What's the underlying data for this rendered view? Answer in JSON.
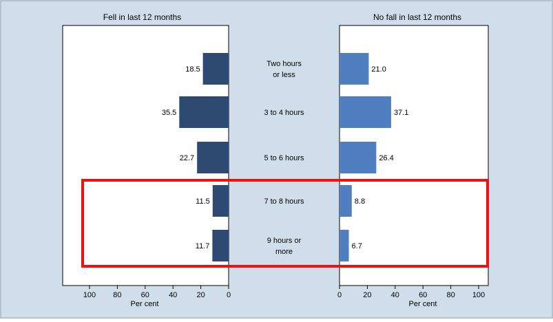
{
  "chart_data": {
    "type": "bar",
    "orientation": "horizontal-butterfly",
    "categories": [
      "Two hours or less",
      "3 to 4 hours",
      "5 to 6 hours",
      "7 to 8 hours",
      "9 hours or more"
    ],
    "category_lines": [
      [
        "Two hours",
        "or less"
      ],
      [
        "3 to 4 hours"
      ],
      [
        "5 to 6 hours"
      ],
      [
        "7 to 8 hours"
      ],
      [
        "9 hours or",
        "more"
      ]
    ],
    "series": [
      {
        "name": "Fell in last 12 months",
        "values": [
          18.5,
          35.5,
          22.7,
          11.5,
          11.7
        ],
        "labels": [
          "18.5",
          "35.5",
          "22.7",
          "11.5",
          "11.7"
        ],
        "color": "#2e4a72"
      },
      {
        "name": "No fall in last 12 months",
        "values": [
          21.0,
          37.1,
          26.4,
          8.8,
          6.7
        ],
        "labels": [
          "21.0",
          "37.1",
          "26.4",
          "8.8",
          "6.7"
        ],
        "color": "#4f7fc0"
      }
    ],
    "xlabel": "Per cent",
    "xlim": [
      0,
      100
    ],
    "xticks_left": [
      "100",
      "80",
      "60",
      "40",
      "20",
      "0"
    ],
    "xticks_right": [
      "0",
      "20",
      "40",
      "60",
      "80",
      "100"
    ],
    "highlight": {
      "categories": [
        "7 to 8 hours",
        "9 hours or more"
      ],
      "color": "#ee1111"
    },
    "background_color": "#d0deeb",
    "plot_background_color": "#ffffff"
  }
}
